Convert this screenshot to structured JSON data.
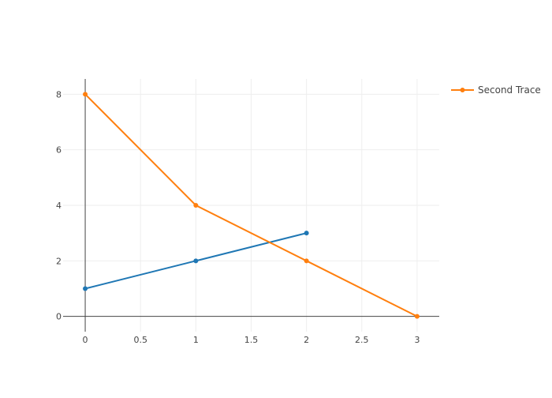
{
  "chart_data": {
    "type": "line",
    "title": "",
    "xlabel": "",
    "ylabel": "",
    "xlim": [
      -0.2,
      3.2
    ],
    "ylim": [
      -0.55,
      8.55
    ],
    "x_ticks": [
      0,
      0.5,
      1,
      1.5,
      2,
      2.5,
      3
    ],
    "x_tick_labels": [
      "0",
      "0.5",
      "1",
      "1.5",
      "2",
      "2.5",
      "3"
    ],
    "y_ticks": [
      0,
      2,
      4,
      6,
      8
    ],
    "y_tick_labels": [
      "0",
      "2",
      "4",
      "6",
      "8"
    ],
    "grid": true,
    "legend_position": "top-right",
    "series": [
      {
        "x": [
          0,
          1,
          2
        ],
        "y": [
          1,
          2,
          3
        ],
        "color": "#1f77b4",
        "show_in_legend": false
      },
      {
        "name": "Second Trace",
        "x": [
          0,
          1,
          2,
          3
        ],
        "y": [
          8,
          4,
          2,
          0
        ],
        "color": "#ff7f0e",
        "show_in_legend": true
      }
    ]
  }
}
